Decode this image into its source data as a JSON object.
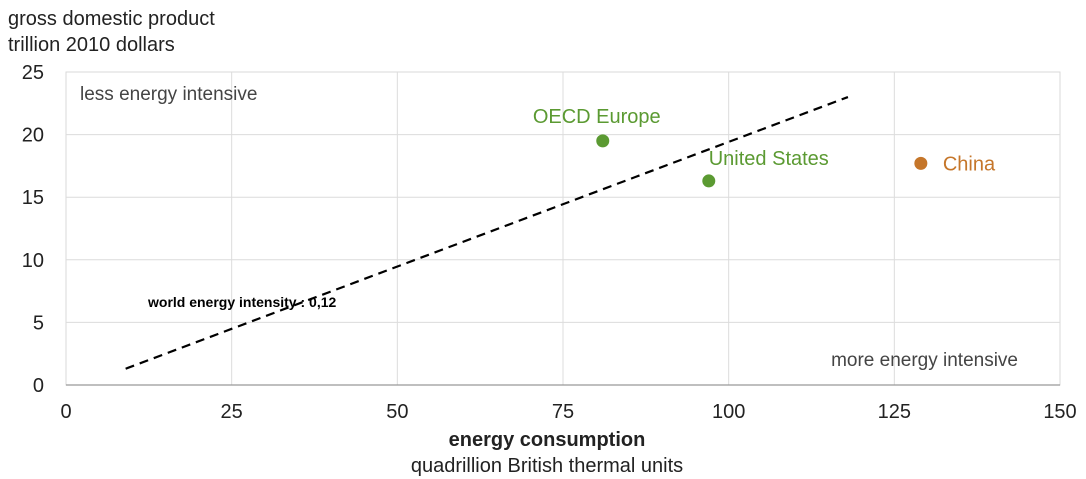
{
  "chart_data": {
    "type": "scatter",
    "ylabel_lines": [
      "gross domestic product",
      "trillion 2010 dollars"
    ],
    "xlabel": "energy consumption",
    "xlabel_sub": "quadrillion British thermal units",
    "xlim": [
      0,
      150
    ],
    "ylim": [
      0,
      25
    ],
    "xticks": [
      "0",
      "25",
      "50",
      "75",
      "100",
      "125",
      "150"
    ],
    "yticks": [
      "0",
      "5",
      "10",
      "15",
      "20",
      "25"
    ],
    "grid": true,
    "annotations": {
      "top_left": "less energy intensive",
      "bottom_right": "more energy intensive"
    },
    "points": [
      {
        "label": "OECD Europe",
        "x": 81,
        "y": 19.5,
        "color": "#5b9a32"
      },
      {
        "label": "United States",
        "x": 97,
        "y": 16.3,
        "color": "#5b9a32"
      },
      {
        "label": "China",
        "x": 129,
        "y": 17.7,
        "color": "#c5762a"
      }
    ],
    "trend_line": {
      "label": "world energy intensity : 0,12",
      "x_start": 9,
      "y_start": 1.3,
      "x_end": 118,
      "y_end": 23
    }
  }
}
